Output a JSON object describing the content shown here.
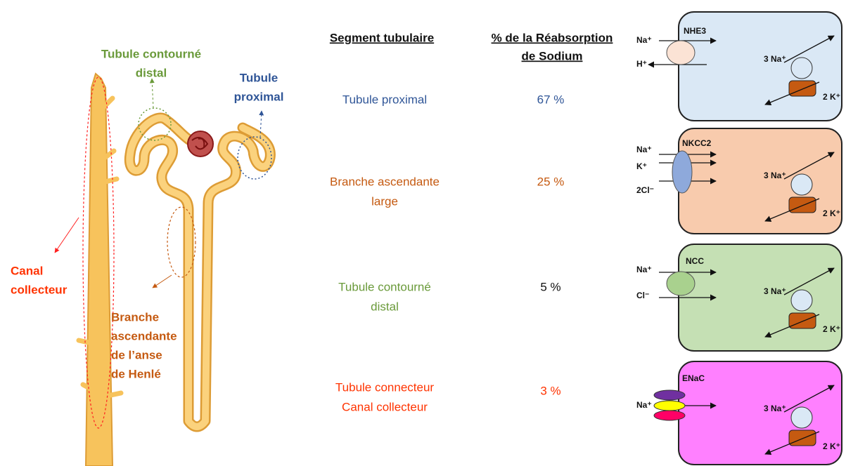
{
  "nephron_labels": {
    "distal": [
      "Tubule contourné",
      "distal"
    ],
    "proximal": [
      "Tubule",
      "proximal"
    ],
    "collecteur": [
      "Canal",
      "collecteur"
    ],
    "branche": [
      "Branche",
      "ascendante",
      "de l’anse",
      "de Henlé"
    ]
  },
  "table": {
    "header": {
      "segment": "Segment tubulaire",
      "reabsorption": [
        "% de la Réabsorption",
        "de Sodium"
      ]
    },
    "rows": [
      {
        "segment": [
          "Tubule proximal"
        ],
        "percent": "67 %"
      },
      {
        "segment": [
          "Branche ascendante",
          "large"
        ],
        "percent": "25 %"
      },
      {
        "segment": [
          "Tubule contourné",
          "distal"
        ],
        "percent": "5 %"
      },
      {
        "segment": [
          "Tubule connecteur",
          "Canal collecteur"
        ],
        "percent": "3 %"
      }
    ]
  },
  "cells": [
    {
      "transporter": "NHE3",
      "ions": [
        "Na⁺",
        "H⁺"
      ],
      "pump": [
        "3 Na⁺",
        "2 K⁺"
      ]
    },
    {
      "transporter": "NKCC2",
      "ions": [
        "Na⁺",
        "K⁺",
        "2Cl⁻"
      ],
      "pump": [
        "3 Na⁺",
        "2 K⁺"
      ]
    },
    {
      "transporter": "NCC",
      "ions": [
        "Na⁺",
        "Cl⁻"
      ],
      "pump": [
        "3 Na⁺",
        "2 K⁺"
      ]
    },
    {
      "transporter": "ENaC",
      "ions": [
        "Na⁺"
      ],
      "pump": [
        "3 Na⁺",
        "2 K⁺"
      ]
    }
  ]
}
